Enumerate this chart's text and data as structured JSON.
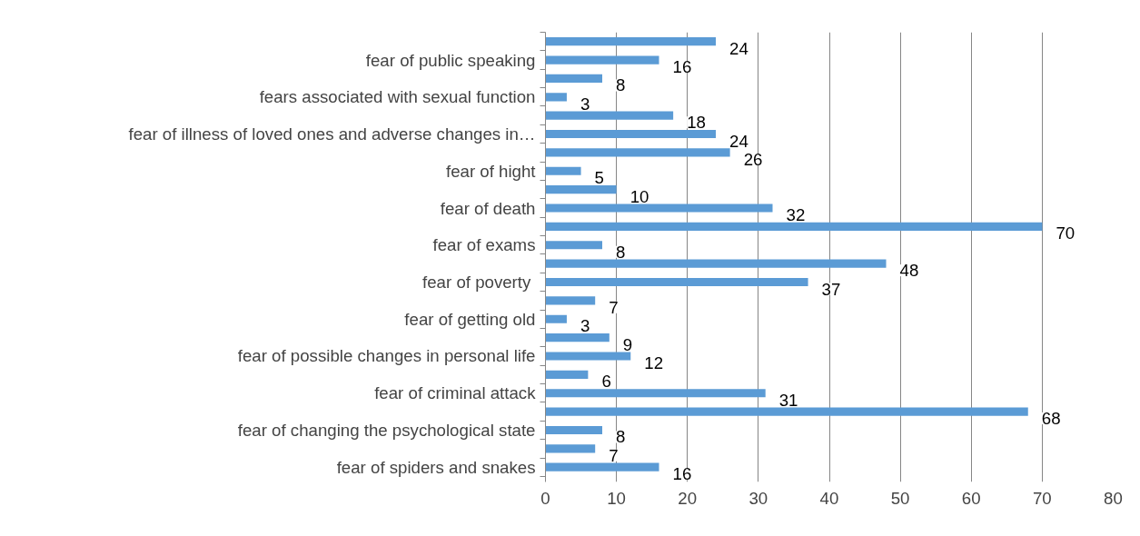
{
  "chart_data": {
    "type": "bar",
    "orientation": "horizontal",
    "categories": [
      null,
      "fear of public speaking",
      null,
      "fears associated with sexual function",
      null,
      "fear of illness of loved ones and adverse changes in…",
      null,
      "fear of hight",
      null,
      "fear of death",
      null,
      "fear of exams",
      null,
      "fear of poverty ",
      null,
      "fear of getting old",
      null,
      "fear of possible changes in personal life",
      null,
      "fear of criminal attack",
      null,
      "fear of changing the psychological state",
      null,
      "fear of spiders and snakes"
    ],
    "values": [
      24,
      16,
      8,
      3,
      18,
      24,
      26,
      5,
      10,
      32,
      70,
      8,
      48,
      37,
      7,
      3,
      9,
      12,
      6,
      31,
      68,
      8,
      7,
      16
    ],
    "color": "#5b9bd5",
    "xlim": [
      0,
      80
    ],
    "xticks": [
      0,
      10,
      20,
      30,
      40,
      50,
      60,
      70,
      80
    ],
    "grid": "x",
    "data_labels": true
  }
}
